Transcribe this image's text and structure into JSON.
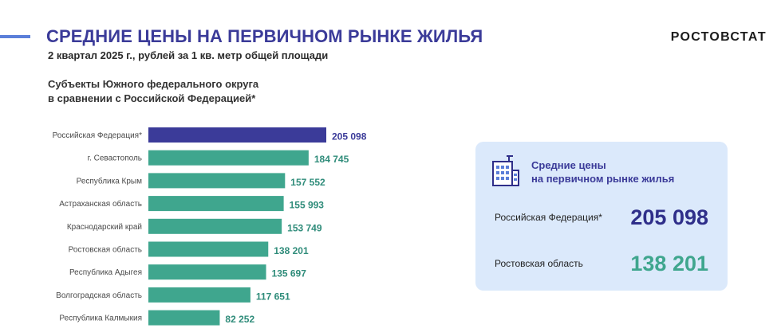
{
  "header": {
    "title": "СРЕДНИЕ ЦЕНЫ НА ПЕРВИЧНОМ РЫНКЕ ЖИЛЬЯ",
    "subtitle": "2 квартал 2025 г., рублей за 1 кв. метр общей площади",
    "brand": "РОСТОВСТАТ",
    "accent_color": "#5b7fd9"
  },
  "section": {
    "title_line1": "Субъекты Южного федерального округа",
    "title_line2": "в сравнении с Российской Федерацией*"
  },
  "chart_data": {
    "type": "bar",
    "orientation": "horizontal",
    "title": "",
    "xlabel": "",
    "ylabel": "",
    "grid": false,
    "categories": [
      "Российская Федерация*",
      "г. Севастополь",
      "Республика Крым",
      "Астраханская область",
      "Краснодарский край",
      "Ростовская область",
      "Республика Адыгея",
      "Волгоградская область",
      "Республика Калмыкия"
    ],
    "values": [
      205098,
      184745,
      157552,
      155993,
      153749,
      138201,
      135697,
      117651,
      82252
    ],
    "value_labels": [
      "205 098",
      "184 745",
      "157 552",
      "155 993",
      "153 749",
      "138 201",
      "135 697",
      "117 651",
      "82 252"
    ],
    "colors": [
      "#3b3b99",
      "#3fa68e",
      "#3fa68e",
      "#3fa68e",
      "#3fa68e",
      "#3fa68e",
      "#3fa68e",
      "#3fa68e",
      "#3fa68e"
    ],
    "label_colors": [
      "#3b3b99",
      "#2f8c7a",
      "#2f8c7a",
      "#2f8c7a",
      "#2f8c7a",
      "#2f8c7a",
      "#2f8c7a",
      "#2f8c7a",
      "#2f8c7a"
    ]
  },
  "card": {
    "title_line1": "Средние цены",
    "title_line2": "на первичном рынке жилья",
    "icon": "building-icon",
    "background": "#dbe9fb",
    "rows": [
      {
        "label": "Российская Федерация*",
        "value": "205 098",
        "color": "#2f2f8a"
      },
      {
        "label": "Ростовская область",
        "value": "138 201",
        "color": "#3fa68e"
      }
    ]
  }
}
